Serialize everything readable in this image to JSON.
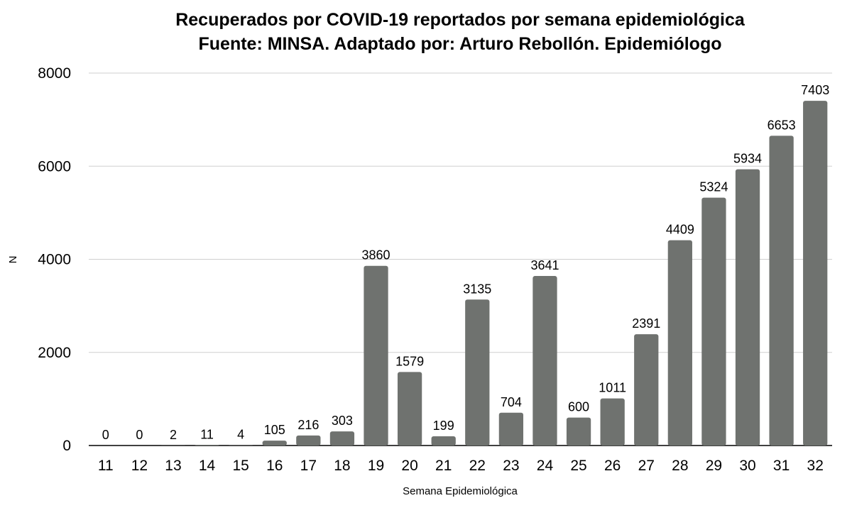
{
  "chart_data": {
    "type": "bar",
    "title": "Recuperados por COVID-19 reportados por semana epidemiológica",
    "subtitle": "Fuente: MINSA.  Adaptado por: Arturo Rebollón. Epidemiólogo",
    "xlabel": "Semana Epidemiológica",
    "ylabel": "N",
    "ylim": [
      0,
      8000
    ],
    "yticks": [
      "0",
      "2000",
      "4000",
      "6000",
      "8000"
    ],
    "grid": true,
    "legend": "none",
    "bar_color": "#6f726f",
    "categories": [
      "11",
      "12",
      "13",
      "14",
      "15",
      "16",
      "17",
      "18",
      "19",
      "20",
      "21",
      "22",
      "23",
      "24",
      "25",
      "26",
      "27",
      "28",
      "29",
      "30",
      "31",
      "32"
    ],
    "values": [
      0,
      0,
      2,
      11,
      4,
      105,
      216,
      303,
      3860,
      1579,
      199,
      3135,
      704,
      3641,
      600,
      1011,
      2391,
      4409,
      5324,
      5934,
      6653,
      7403
    ]
  }
}
